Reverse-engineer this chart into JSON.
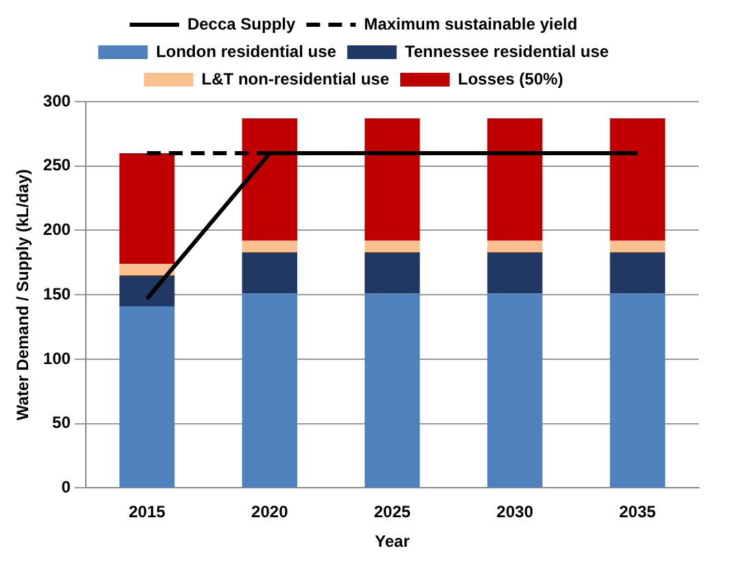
{
  "chart_data": {
    "type": "bar",
    "stacked": true,
    "xlabel": "Year",
    "ylabel": "Water Demand / Supply (kL/day)",
    "categories": [
      "2015",
      "2020",
      "2025",
      "2030",
      "2035"
    ],
    "series": [
      {
        "name": "London residential use",
        "color": "#4f81bd",
        "values": [
          141,
          151,
          151,
          151,
          151
        ]
      },
      {
        "name": "Tennessee residential use",
        "color": "#1f3864",
        "values": [
          24,
          32,
          32,
          32,
          32
        ]
      },
      {
        "name": "L&T non-residential use",
        "color": "#fac090",
        "values": [
          9,
          9,
          9,
          9,
          9
        ]
      },
      {
        "name": "Losses (50%)",
        "color": "#c00000",
        "values": [
          86,
          95,
          95,
          95,
          95
        ]
      },
      {
        "name": "Decca Supply",
        "type": "line",
        "color": "#000000",
        "line_style": "solid",
        "values": [
          147,
          260,
          260,
          260,
          260
        ]
      },
      {
        "name": "Maximum sustainable yield",
        "type": "line",
        "color": "#000000",
        "line_style": "dashed",
        "values": [
          260,
          260,
          null,
          null,
          null
        ]
      }
    ],
    "ylim": [
      0,
      300
    ],
    "yticks": [
      0,
      50,
      100,
      150,
      200,
      250,
      300
    ],
    "grid": "y",
    "legend": "top",
    "marker": "none"
  }
}
